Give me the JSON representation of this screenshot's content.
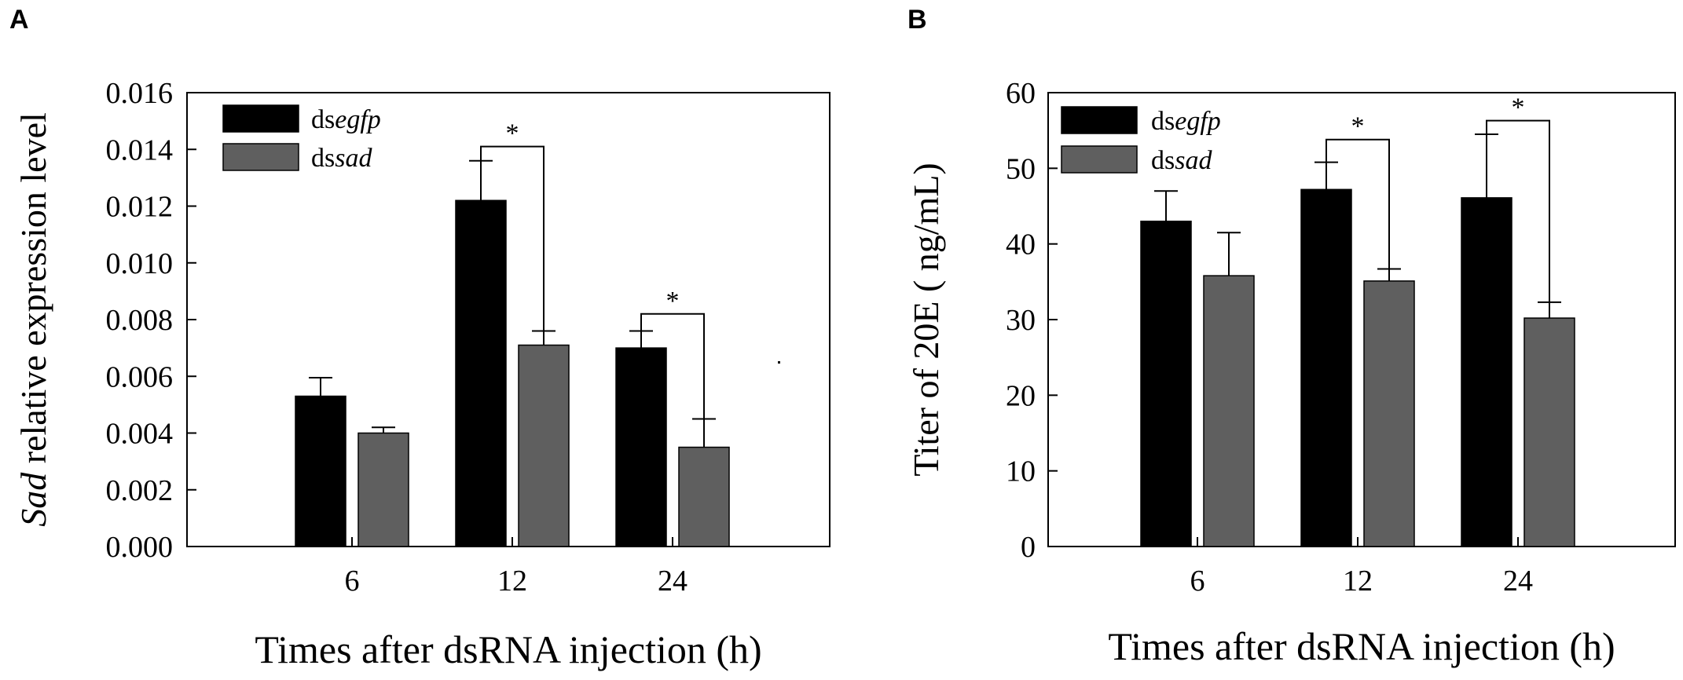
{
  "colors": {
    "dsegfp": "#000000",
    "dssad": "#5f5f5f",
    "axis": "#000000"
  },
  "chart_data": [
    {
      "panel_label": "A",
      "type": "bar",
      "title": "",
      "xlabel": "Times after dsRNA injection (h)",
      "ylabel_italic": "Sad",
      "ylabel_rest": " relative expression level",
      "categories": [
        "6",
        "12",
        "24"
      ],
      "ylim": [
        0,
        0.016
      ],
      "yticks": [
        "0.000",
        "0.002",
        "0.004",
        "0.006",
        "0.008",
        "0.010",
        "0.012",
        "0.014",
        "0.016"
      ],
      "legend_position": "top-left",
      "series": [
        {
          "name": "dsegfp",
          "name_prefix": "ds",
          "name_italic": "egfp",
          "color": "#000000",
          "values": [
            0.0053,
            0.0122,
            0.007
          ],
          "errors": [
            0.00065,
            0.0014,
            0.0006
          ]
        },
        {
          "name": "dssad",
          "name_prefix": "ds",
          "name_italic": "sad",
          "color": "#5f5f5f",
          "values": [
            0.004,
            0.0071,
            0.0035
          ],
          "errors": [
            0.0002,
            0.0005,
            0.001
          ]
        }
      ],
      "significance": [
        {
          "category_index": 1,
          "label": "*",
          "level": 0.0141
        },
        {
          "category_index": 2,
          "label": "*",
          "level": 0.0082
        }
      ]
    },
    {
      "panel_label": "B",
      "type": "bar",
      "title": "",
      "xlabel": "Times after dsRNA injection (h)",
      "ylabel_italic": "",
      "ylabel_rest": "Titer of 20E ( ng/mL)",
      "categories": [
        "6",
        "12",
        "24"
      ],
      "ylim": [
        0,
        60
      ],
      "yticks": [
        "0",
        "10",
        "20",
        "30",
        "40",
        "50",
        "60"
      ],
      "legend_position": "top-left",
      "series": [
        {
          "name": "dsegfp",
          "name_prefix": "ds",
          "name_italic": "egfp",
          "color": "#000000",
          "values": [
            43.0,
            47.2,
            46.1
          ],
          "errors": [
            4.0,
            3.6,
            8.4
          ]
        },
        {
          "name": "dssad",
          "name_prefix": "ds",
          "name_italic": "sad",
          "color": "#5f5f5f",
          "values": [
            35.8,
            35.1,
            30.2
          ],
          "errors": [
            5.7,
            1.6,
            2.1
          ]
        }
      ],
      "significance": [
        {
          "category_index": 1,
          "label": "*",
          "level": 53.8
        },
        {
          "category_index": 2,
          "label": "*",
          "level": 56.3
        }
      ]
    }
  ]
}
